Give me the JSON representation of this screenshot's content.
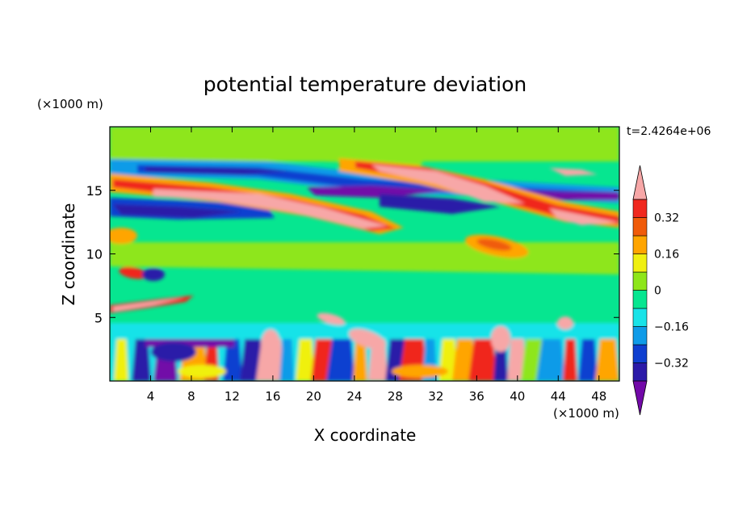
{
  "chart_data": {
    "type": "heatmap",
    "title": "potential temperature deviation",
    "xlabel": "X coordinate",
    "ylabel": "Z coordinate",
    "x_unit": "(×1000 m)",
    "y_unit": "(×1000 m)",
    "time_label": "t=2.4264e+06",
    "xlim": [
      0,
      50
    ],
    "ylim": [
      0,
      20
    ],
    "x_ticks": [
      4,
      8,
      12,
      16,
      20,
      24,
      28,
      32,
      36,
      40,
      44,
      48
    ],
    "y_ticks": [
      5,
      10,
      15
    ],
    "colorbar": {
      "levels": [
        -0.4,
        -0.32,
        -0.24,
        -0.16,
        -0.08,
        0,
        0.08,
        0.16,
        0.24,
        0.32,
        0.4
      ],
      "tick_labels": [
        "0.32",
        "0.16",
        "0",
        "−0.16",
        "−0.32"
      ],
      "tick_values": [
        0.32,
        0.16,
        0,
        -0.16,
        -0.32
      ],
      "colors": [
        "#7209a8",
        "#2b1aa8",
        "#0f3fd0",
        "#0f9be8",
        "#19e3e8",
        "#06e690",
        "#8ee61a",
        "#f0f011",
        "#ffa500",
        "#f05b09",
        "#f0281e",
        "#f7a7a7"
      ],
      "extend": "both"
    },
    "features": [
      {
        "band": "upper",
        "z_range": [
          11,
          17
        ],
        "note": "tilted alternating warm/cold layers"
      },
      {
        "band": "middle",
        "z_range": [
          4,
          11
        ],
        "note": "near-zero deviation"
      },
      {
        "band": "lower",
        "z_range": [
          0,
          4
        ],
        "note": "convective mixed layer with strong alternating anomalies"
      }
    ]
  }
}
